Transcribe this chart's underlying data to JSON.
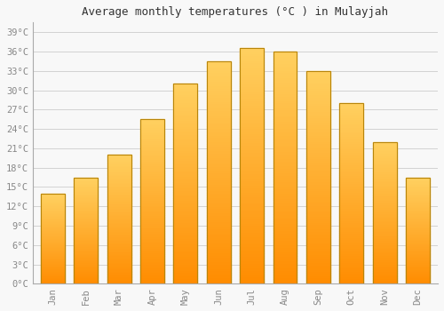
{
  "title": "Average monthly temperatures (°C ) in Mulayjah",
  "months": [
    "Jan",
    "Feb",
    "Mar",
    "Apr",
    "May",
    "Jun",
    "Jul",
    "Aug",
    "Sep",
    "Oct",
    "Nov",
    "Dec"
  ],
  "values": [
    14,
    16.5,
    20,
    25.5,
    31,
    34.5,
    36.5,
    36,
    33,
    28,
    22,
    16.5
  ],
  "bar_color_face": "#FFA500",
  "bar_color_edge": "#CC7700",
  "background_color": "#F8F8F8",
  "grid_color": "#CCCCCC",
  "text_color": "#888888",
  "title_color": "#333333",
  "yticks": [
    0,
    3,
    6,
    9,
    12,
    15,
    18,
    21,
    24,
    27,
    30,
    33,
    36,
    39
  ],
  "ylim": [
    0,
    40.5
  ],
  "title_fontsize": 9,
  "tick_fontsize": 7.5,
  "font_family": "monospace"
}
